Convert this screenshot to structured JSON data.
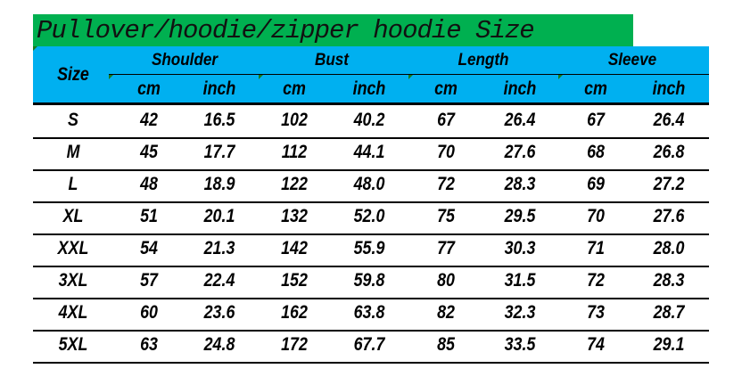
{
  "title": "Pullover/hoodie/zipper hoodie Size",
  "colors": {
    "title_bg": "#00b050",
    "header_bg": "#00b0f0"
  },
  "header": {
    "size": "Size",
    "groups": [
      "Shoulder",
      "Bust",
      "Length",
      "Sleeve"
    ],
    "units": [
      "cm",
      "inch",
      "cm",
      "inch",
      "cm",
      "inch",
      "cm",
      "inch"
    ]
  },
  "rows": [
    [
      "S",
      "42",
      "16.5",
      "102",
      "40.2",
      "67",
      "26.4",
      "67",
      "26.4"
    ],
    [
      "M",
      "45",
      "17.7",
      "112",
      "44.1",
      "70",
      "27.6",
      "68",
      "26.8"
    ],
    [
      "L",
      "48",
      "18.9",
      "122",
      "48.0",
      "72",
      "28.3",
      "69",
      "27.2"
    ],
    [
      "XL",
      "51",
      "20.1",
      "132",
      "52.0",
      "75",
      "29.5",
      "70",
      "27.6"
    ],
    [
      "XXL",
      "54",
      "21.3",
      "142",
      "55.9",
      "77",
      "30.3",
      "71",
      "28.0"
    ],
    [
      "3XL",
      "57",
      "22.4",
      "152",
      "59.8",
      "80",
      "31.5",
      "72",
      "28.3"
    ],
    [
      "4XL",
      "60",
      "23.6",
      "162",
      "63.8",
      "82",
      "32.3",
      "73",
      "28.7"
    ],
    [
      "5XL",
      "63",
      "24.8",
      "172",
      "67.7",
      "85",
      "33.5",
      "74",
      "29.1"
    ]
  ]
}
